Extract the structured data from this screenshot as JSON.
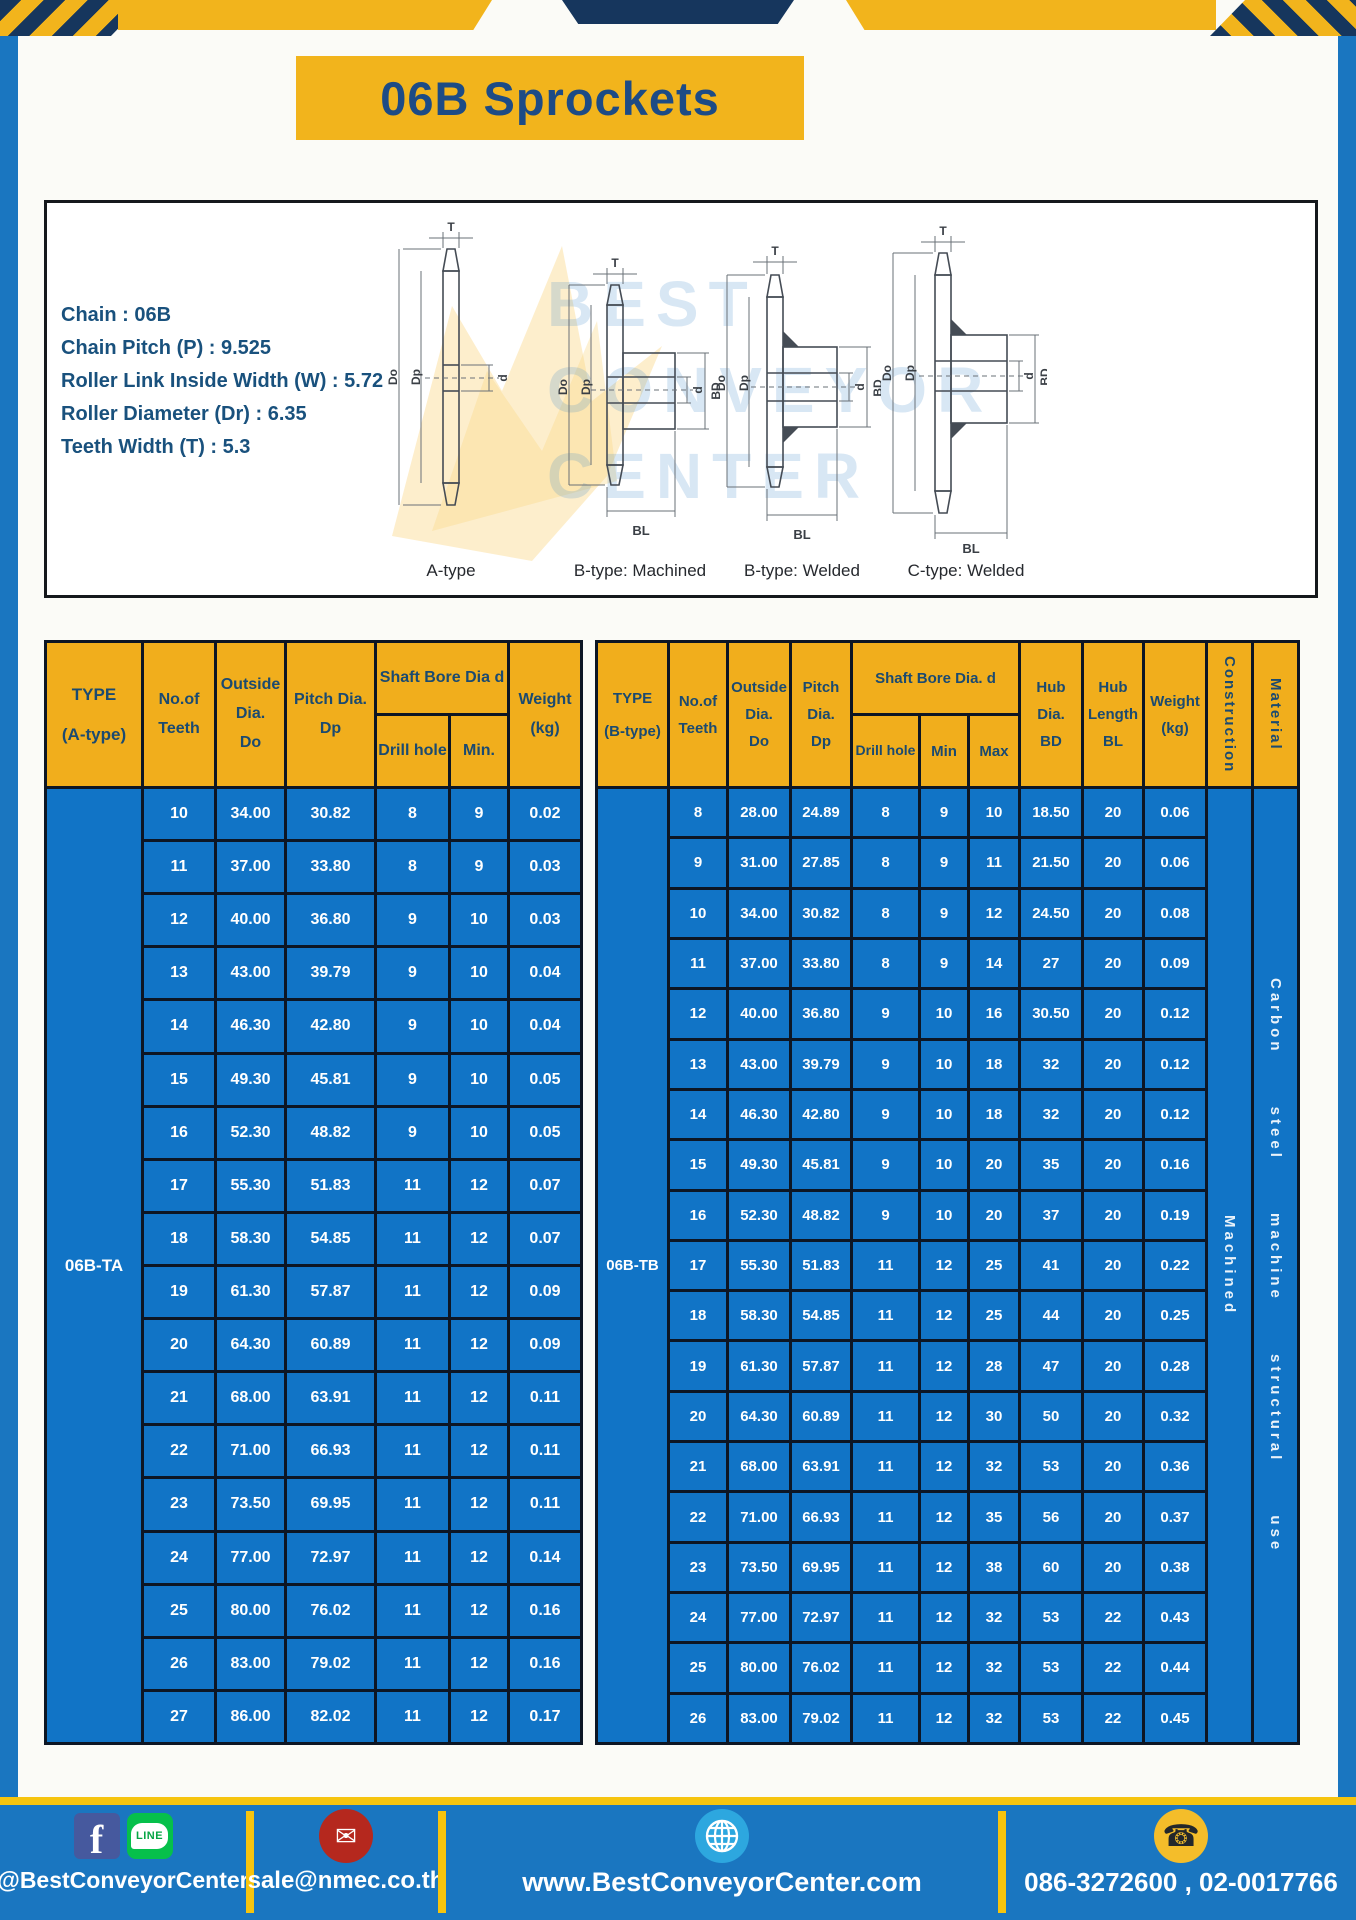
{
  "page": {
    "title": "06B Sprockets"
  },
  "specs": {
    "lines": [
      "Chain  : 06B",
      "Chain Pitch (P)  :  9.525",
      "Roller Link Inside Width (W)  :  5.72",
      "Roller Diameter (Dr)  : 6.35",
      "Teeth Width (T)  :  5.3"
    ]
  },
  "diagram": {
    "captions": [
      "A-type",
      "B-type: Machined",
      "B-type: Welded",
      "C-type: Welded"
    ],
    "dims": {
      "t": "T",
      "do_": "Do",
      "dp": "Dp",
      "d": "d",
      "bd": "BD",
      "bl": "BL"
    },
    "watermark": [
      "BEST",
      "CONVEYOR",
      "CENTER"
    ]
  },
  "table_a": {
    "header": {
      "type": "TYPE",
      "type_sub": "(A-type)",
      "teeth": "No.of\nTeeth",
      "outside": "Outside\nDia.\nDo",
      "pitch": "Pitch Dia.\nDp",
      "shaft": "Shaft Bore Dia d",
      "drill": "Drill hole",
      "min": "Min.",
      "weight": "Weight\n(kg)"
    },
    "group_label": "06B-TA",
    "rows": [
      [
        "10",
        "34.00",
        "30.82",
        "8",
        "9",
        "0.02"
      ],
      [
        "11",
        "37.00",
        "33.80",
        "8",
        "9",
        "0.03"
      ],
      [
        "12",
        "40.00",
        "36.80",
        "9",
        "10",
        "0.03"
      ],
      [
        "13",
        "43.00",
        "39.79",
        "9",
        "10",
        "0.04"
      ],
      [
        "14",
        "46.30",
        "42.80",
        "9",
        "10",
        "0.04"
      ],
      [
        "15",
        "49.30",
        "45.81",
        "9",
        "10",
        "0.05"
      ],
      [
        "16",
        "52.30",
        "48.82",
        "9",
        "10",
        "0.05"
      ],
      [
        "17",
        "55.30",
        "51.83",
        "11",
        "12",
        "0.07"
      ],
      [
        "18",
        "58.30",
        "54.85",
        "11",
        "12",
        "0.07"
      ],
      [
        "19",
        "61.30",
        "57.87",
        "11",
        "12",
        "0.09"
      ],
      [
        "20",
        "64.30",
        "60.89",
        "11",
        "12",
        "0.09"
      ],
      [
        "21",
        "68.00",
        "63.91",
        "11",
        "12",
        "0.11"
      ],
      [
        "22",
        "71.00",
        "66.93",
        "11",
        "12",
        "0.11"
      ],
      [
        "23",
        "73.50",
        "69.95",
        "11",
        "12",
        "0.11"
      ],
      [
        "24",
        "77.00",
        "72.97",
        "11",
        "12",
        "0.14"
      ],
      [
        "25",
        "80.00",
        "76.02",
        "11",
        "12",
        "0.16"
      ],
      [
        "26",
        "83.00",
        "79.02",
        "11",
        "12",
        "0.16"
      ],
      [
        "27",
        "86.00",
        "82.02",
        "11",
        "12",
        "0.17"
      ]
    ]
  },
  "table_b": {
    "header": {
      "type": "TYPE",
      "type_sub": "(B-type)",
      "teeth": "No.of\nTeeth",
      "outside": "Outside\nDia.\nDo",
      "pitch": "Pitch\nDia.\nDp",
      "shaft": "Shaft Bore Dia.  d",
      "drill": "Drill hole",
      "min": "Min",
      "max": "Max",
      "hub_dia": "Hub\nDia.\nBD",
      "hub_len": "Hub\nLength\nBL",
      "weight": "Weight\n(kg)",
      "construction": "Construction",
      "material": "Material"
    },
    "group_label": "06B-TB",
    "construction_value": "Machined",
    "material_value": "Carbon steel machine structural use",
    "rows": [
      [
        "8",
        "28.00",
        "24.89",
        "8",
        "9",
        "10",
        "18.50",
        "20",
        "0.06"
      ],
      [
        "9",
        "31.00",
        "27.85",
        "8",
        "9",
        "11",
        "21.50",
        "20",
        "0.06"
      ],
      [
        "10",
        "34.00",
        "30.82",
        "8",
        "9",
        "12",
        "24.50",
        "20",
        "0.08"
      ],
      [
        "11",
        "37.00",
        "33.80",
        "8",
        "9",
        "14",
        "27",
        "20",
        "0.09"
      ],
      [
        "12",
        "40.00",
        "36.80",
        "9",
        "10",
        "16",
        "30.50",
        "20",
        "0.12"
      ],
      [
        "13",
        "43.00",
        "39.79",
        "9",
        "10",
        "18",
        "32",
        "20",
        "0.12"
      ],
      [
        "14",
        "46.30",
        "42.80",
        "9",
        "10",
        "18",
        "32",
        "20",
        "0.12"
      ],
      [
        "15",
        "49.30",
        "45.81",
        "9",
        "10",
        "20",
        "35",
        "20",
        "0.16"
      ],
      [
        "16",
        "52.30",
        "48.82",
        "9",
        "10",
        "20",
        "37",
        "20",
        "0.19"
      ],
      [
        "17",
        "55.30",
        "51.83",
        "11",
        "12",
        "25",
        "41",
        "20",
        "0.22"
      ],
      [
        "18",
        "58.30",
        "54.85",
        "11",
        "12",
        "25",
        "44",
        "20",
        "0.25"
      ],
      [
        "19",
        "61.30",
        "57.87",
        "11",
        "12",
        "28",
        "47",
        "20",
        "0.28"
      ],
      [
        "20",
        "64.30",
        "60.89",
        "11",
        "12",
        "30",
        "50",
        "20",
        "0.32"
      ],
      [
        "21",
        "68.00",
        "63.91",
        "11",
        "12",
        "32",
        "53",
        "20",
        "0.36"
      ],
      [
        "22",
        "71.00",
        "66.93",
        "11",
        "12",
        "35",
        "56",
        "20",
        "0.37"
      ],
      [
        "23",
        "73.50",
        "69.95",
        "11",
        "12",
        "38",
        "60",
        "20",
        "0.38"
      ],
      [
        "24",
        "77.00",
        "72.97",
        "11",
        "12",
        "32",
        "53",
        "22",
        "0.43"
      ],
      [
        "25",
        "80.00",
        "76.02",
        "11",
        "12",
        "32",
        "53",
        "22",
        "0.44"
      ],
      [
        "26",
        "83.00",
        "79.02",
        "11",
        "12",
        "32",
        "53",
        "22",
        "0.45"
      ]
    ]
  },
  "footer": {
    "social_handle": "@BestConveyorCenter",
    "email": "sale@nmec.co.th",
    "website": "www.BestConveyorCenter.com",
    "phones": "086-3272600 , 02-0017766",
    "icons": {
      "facebook": "f",
      "line": "LINE",
      "mail": "✉",
      "phone": "☎"
    }
  },
  "colors": {
    "frame_blue": "#1a76c0",
    "table_blue": "#1174c6",
    "amber": "#f2b41c",
    "navy": "#16365d",
    "footer_yellow": "#f6c40e"
  }
}
